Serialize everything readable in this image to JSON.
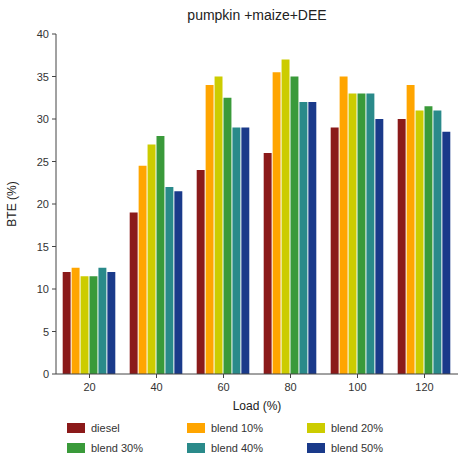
{
  "chart_data": {
    "type": "bar",
    "title": "pumpkin +maize+DEE",
    "xlabel": "Load (%)",
    "ylabel": "BTE (%)",
    "categories": [
      "20",
      "40",
      "60",
      "80",
      "100",
      "120"
    ],
    "series": [
      {
        "name": "diesel",
        "color": "#8B1A1A",
        "values": [
          12.0,
          19.0,
          24.0,
          26.0,
          29.0,
          30.0
        ]
      },
      {
        "name": "blend 10%",
        "color": "#FFA500",
        "values": [
          12.5,
          24.5,
          34.0,
          35.5,
          35.0,
          34.0
        ]
      },
      {
        "name": "blend 20%",
        "color": "#CCCC00",
        "values": [
          11.5,
          27.0,
          35.0,
          37.0,
          33.0,
          31.0
        ]
      },
      {
        "name": "blend 30%",
        "color": "#3A9A3A",
        "values": [
          11.5,
          28.0,
          32.5,
          35.0,
          33.0,
          31.5
        ]
      },
      {
        "name": "blend 40%",
        "color": "#2A8A8A",
        "values": [
          12.5,
          22.0,
          29.0,
          32.0,
          33.0,
          31.0
        ]
      },
      {
        "name": "blend 50%",
        "color": "#1A3A8A",
        "values": [
          12.0,
          21.5,
          29.0,
          32.0,
          30.0,
          28.5
        ]
      }
    ],
    "ylim": [
      0,
      40
    ],
    "yticks": [
      0,
      5,
      10,
      15,
      20,
      25,
      30,
      35,
      40
    ],
    "grid": false,
    "legend": "bottom"
  }
}
